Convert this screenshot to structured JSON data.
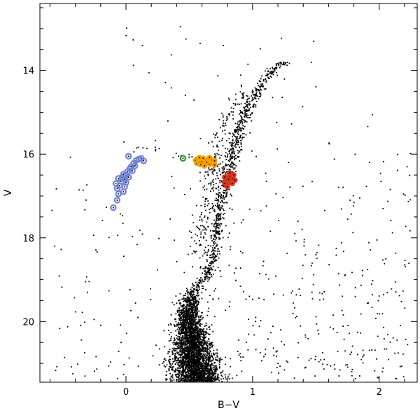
{
  "chart_data": {
    "type": "scatter",
    "title": "",
    "xlabel": "B−V",
    "ylabel": "V",
    "xlim": [
      -0.68,
      2.3
    ],
    "ylim": [
      21.45,
      12.4
    ],
    "y_inverted": true,
    "x_ticks": [
      0,
      1,
      2
    ],
    "x_tick_labels": [
      "0",
      "1",
      "2"
    ],
    "y_ticks": [
      14,
      16,
      18,
      20
    ],
    "y_tick_labels": [
      "14",
      "16",
      "18",
      "20"
    ],
    "grid": false,
    "legend": "none",
    "series": [
      {
        "role": "all stars",
        "color": "#000000",
        "marker": "dot",
        "distribution": {
          "main_sequence_ridge": [
            [
              0.57,
              21.4
            ],
            [
              0.53,
              20.8
            ],
            [
              0.51,
              20.3
            ],
            [
              0.49,
              19.9
            ],
            [
              0.5,
              19.55
            ],
            [
              0.53,
              19.3
            ],
            [
              0.58,
              19.1
            ],
            [
              0.64,
              18.9
            ],
            [
              0.68,
              18.6
            ],
            [
              0.7,
              18.2
            ],
            [
              0.72,
              17.8
            ],
            [
              0.74,
              17.4
            ],
            [
              0.76,
              17.0
            ],
            [
              0.79,
              16.6
            ],
            [
              0.82,
              16.2
            ],
            [
              0.85,
              15.8
            ],
            [
              0.89,
              15.4
            ],
            [
              0.95,
              15.0
            ],
            [
              1.02,
              14.6
            ],
            [
              1.1,
              14.2
            ],
            [
              1.2,
              13.9
            ],
            [
              1.32,
              13.7
            ]
          ],
          "horizontal_branch": [
            [
              0.12,
              15.85
            ],
            [
              0.25,
              15.92
            ],
            [
              0.4,
              16.0
            ],
            [
              0.52,
              16.1
            ],
            [
              0.6,
              16.15
            ]
          ],
          "field_x_range": [
            -0.6,
            2.25
          ],
          "field_y_range": [
            12.8,
            21.4
          ]
        }
      },
      {
        "role": "blue horizontal branch stars",
        "color": "#6f82d6",
        "marker": "open circle",
        "points": [
          [
            -0.1,
            17.28
          ],
          [
            -0.07,
            17.1
          ],
          [
            -0.06,
            16.95
          ],
          [
            -0.07,
            16.82
          ],
          [
            -0.05,
            16.75
          ],
          [
            -0.08,
            16.7
          ],
          [
            -0.04,
            16.65
          ],
          [
            -0.02,
            16.9
          ],
          [
            -0.01,
            16.78
          ],
          [
            -0.03,
            16.55
          ],
          [
            -0.01,
            16.6
          ],
          [
            0.0,
            16.68
          ],
          [
            0.0,
            16.5
          ],
          [
            0.01,
            16.42
          ],
          [
            0.02,
            16.55
          ],
          [
            0.03,
            16.35
          ],
          [
            0.04,
            16.3
          ],
          [
            0.05,
            16.4
          ],
          [
            0.06,
            16.22
          ],
          [
            0.07,
            16.28
          ],
          [
            0.08,
            16.15
          ],
          [
            0.1,
            16.12
          ],
          [
            0.12,
            16.1
          ],
          [
            0.14,
            16.16
          ],
          [
            0.02,
            16.05
          ],
          [
            -0.06,
            16.58
          ],
          [
            -0.02,
            16.48
          ]
        ]
      },
      {
        "role": "RR Lyrae gap star",
        "color": "#2a8f2a",
        "marker": "open circle",
        "points": [
          [
            0.45,
            16.1
          ]
        ]
      },
      {
        "role": "red horizontal branch stars",
        "color": "#f5a000",
        "marker": "filled circle",
        "points": [
          [
            0.55,
            16.15
          ],
          [
            0.56,
            16.22
          ],
          [
            0.57,
            16.12
          ],
          [
            0.58,
            16.2
          ],
          [
            0.59,
            16.25
          ],
          [
            0.6,
            16.18
          ],
          [
            0.61,
            16.1
          ],
          [
            0.62,
            16.22
          ],
          [
            0.63,
            16.15
          ],
          [
            0.64,
            16.2
          ],
          [
            0.65,
            16.12
          ],
          [
            0.66,
            16.24
          ],
          [
            0.67,
            16.18
          ],
          [
            0.68,
            16.14
          ],
          [
            0.69,
            16.22
          ],
          [
            0.7,
            16.16
          ],
          [
            0.62,
            16.28
          ],
          [
            0.66,
            16.08
          ],
          [
            0.58,
            16.08
          ],
          [
            0.7,
            16.26
          ]
        ]
      },
      {
        "role": "red giant branch bump stars",
        "color": "#d9341c",
        "marker": "filled circle",
        "points": [
          [
            0.78,
            16.55
          ],
          [
            0.79,
            16.65
          ],
          [
            0.8,
            16.72
          ],
          [
            0.81,
            16.6
          ],
          [
            0.82,
            16.52
          ],
          [
            0.83,
            16.68
          ],
          [
            0.84,
            16.58
          ],
          [
            0.85,
            16.5
          ],
          [
            0.86,
            16.62
          ],
          [
            0.8,
            16.78
          ],
          [
            0.82,
            16.45
          ],
          [
            0.84,
            16.7
          ],
          [
            0.78,
            16.7
          ]
        ]
      }
    ]
  }
}
